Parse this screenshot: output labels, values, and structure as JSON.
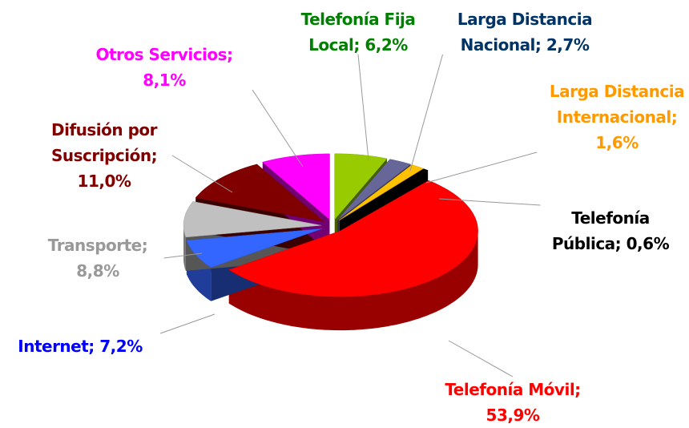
{
  "chart_data": {
    "type": "pie3d",
    "categories": [
      "Telefonía Fija Local;",
      "Larga Distancia Nacional;",
      "Larga Distancia Internacional;",
      "Telefonía Pública;",
      "Telefonía Móvil;",
      "Internet;",
      "Transporte;",
      "Difusión por Suscripción;",
      "Otros Servicios;"
    ],
    "values": [
      6.2,
      2.7,
      1.6,
      0.6,
      53.9,
      7.2,
      8.8,
      11.0,
      8.1
    ],
    "value_labels": [
      "6,2%",
      "2,7%",
      "1,6%",
      "0,6%",
      "53,9%",
      "7,2%",
      "8,8%",
      "11,0%",
      "8,1%"
    ],
    "colors": [
      "#99cc00",
      "#666699",
      "#ffc000",
      "#000000",
      "#ff0000",
      "#3366ff",
      "#c0c0c0",
      "#800000",
      "#ff00ff"
    ],
    "label_colors": [
      "#008000",
      "#003366",
      "#ff9900",
      "#000000",
      "#ff0000",
      "#0000ff",
      "#999999",
      "#800000",
      "#ff00ff"
    ]
  }
}
